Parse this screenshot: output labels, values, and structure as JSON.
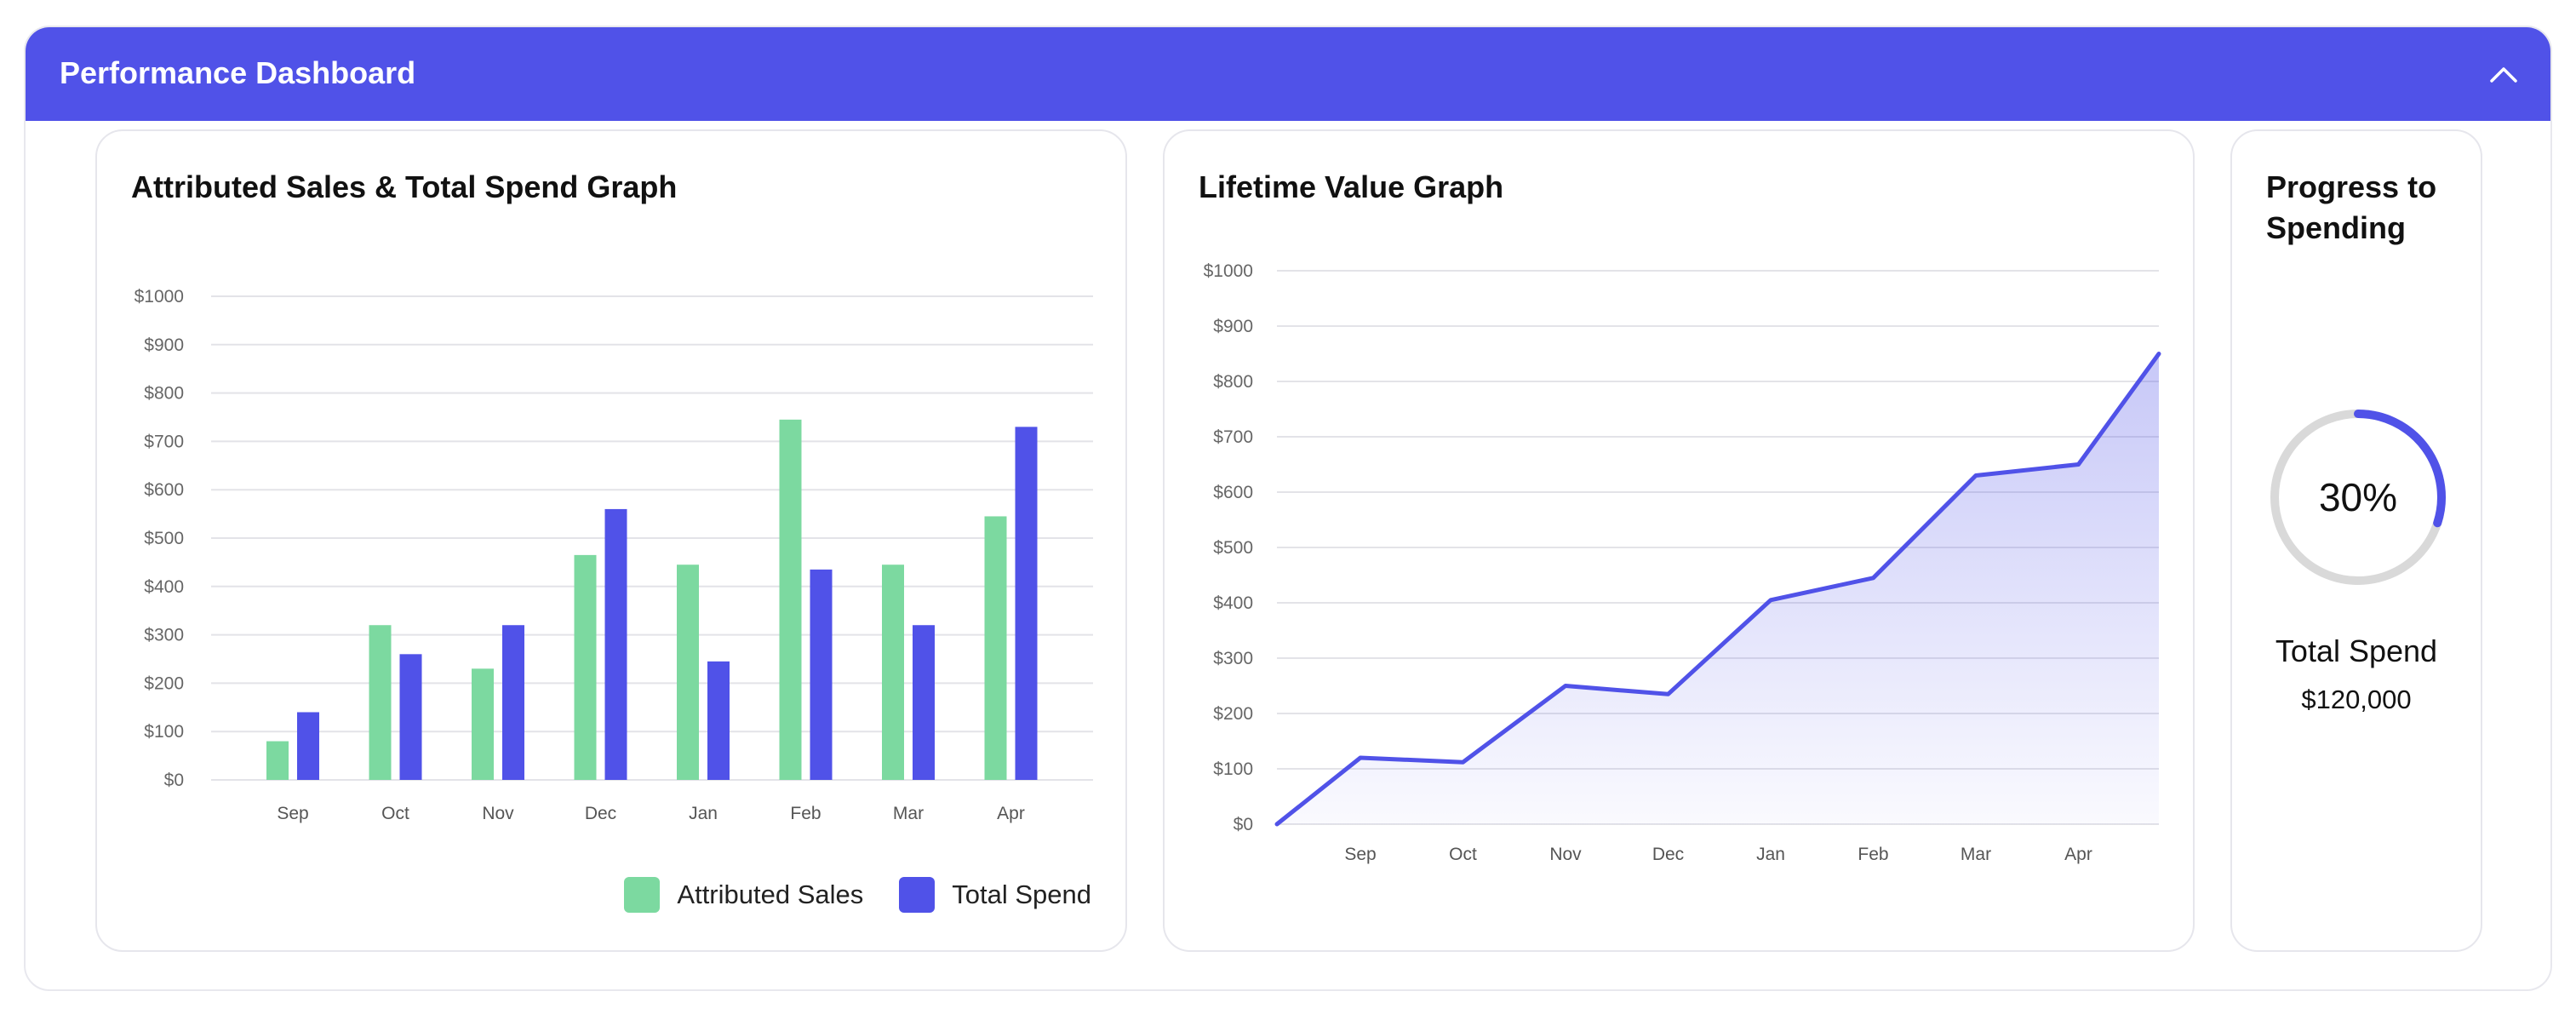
{
  "header": {
    "title": "Performance Dashboard",
    "collapse_icon": "chevron-up-icon",
    "background_color": "#5052e8"
  },
  "sales_card": {
    "title": "Attributed Sales & Total Spend Graph",
    "legend": [
      {
        "label": "Attributed Sales",
        "color": "#7cd9a0",
        "icon": "checkbox-checked-icon"
      },
      {
        "label": "Total Spend",
        "color": "#5052e8",
        "icon": "checkbox-checked-icon"
      }
    ]
  },
  "ltv_card": {
    "title": "Lifetime Value Graph"
  },
  "progress_card": {
    "title": "Progress to Spending",
    "percent_label": "30%",
    "total_label": "Total Spend",
    "total_value": "$120,000"
  },
  "chart_data": [
    {
      "type": "bar",
      "title": "Attributed Sales & Total Spend Graph",
      "categories": [
        "Sep",
        "Oct",
        "Nov",
        "Dec",
        "Jan",
        "Feb",
        "Mar",
        "Apr"
      ],
      "series": [
        {
          "name": "Attributed Sales",
          "color": "#7cd9a0",
          "values": [
            80,
            320,
            230,
            465,
            445,
            745,
            445,
            545
          ]
        },
        {
          "name": "Total Spend",
          "color": "#5052e8",
          "values": [
            140,
            260,
            320,
            560,
            245,
            435,
            320,
            730
          ]
        }
      ],
      "y_ticks": [
        "$0",
        "$100",
        "$200",
        "$300",
        "$400",
        "$500",
        "$600",
        "$700",
        "$800",
        "$900",
        "$1000"
      ],
      "ylim": [
        0,
        1000
      ],
      "grid": true,
      "legend_position": "bottom-right"
    },
    {
      "type": "area",
      "title": "Lifetime Value Graph",
      "categories": [
        "Sep",
        "Oct",
        "Nov",
        "Dec",
        "Jan",
        "Feb",
        "Mar",
        "Apr"
      ],
      "series": [
        {
          "color": "#5052e8",
          "values": [
            120,
            112,
            250,
            235,
            405,
            445,
            630,
            650
          ],
          "start_value": 0,
          "end_value": 850
        }
      ],
      "y_ticks": [
        "$0",
        "$100",
        "$200",
        "$300",
        "$400",
        "$500",
        "$600",
        "$700",
        "$800",
        "$900",
        "$1000"
      ],
      "ylim": [
        0,
        1000
      ],
      "grid": true
    },
    {
      "type": "pie",
      "title": "Progress to Spending",
      "value": 30,
      "color": "#5052e8",
      "track_color": "#d9d9d9"
    }
  ]
}
